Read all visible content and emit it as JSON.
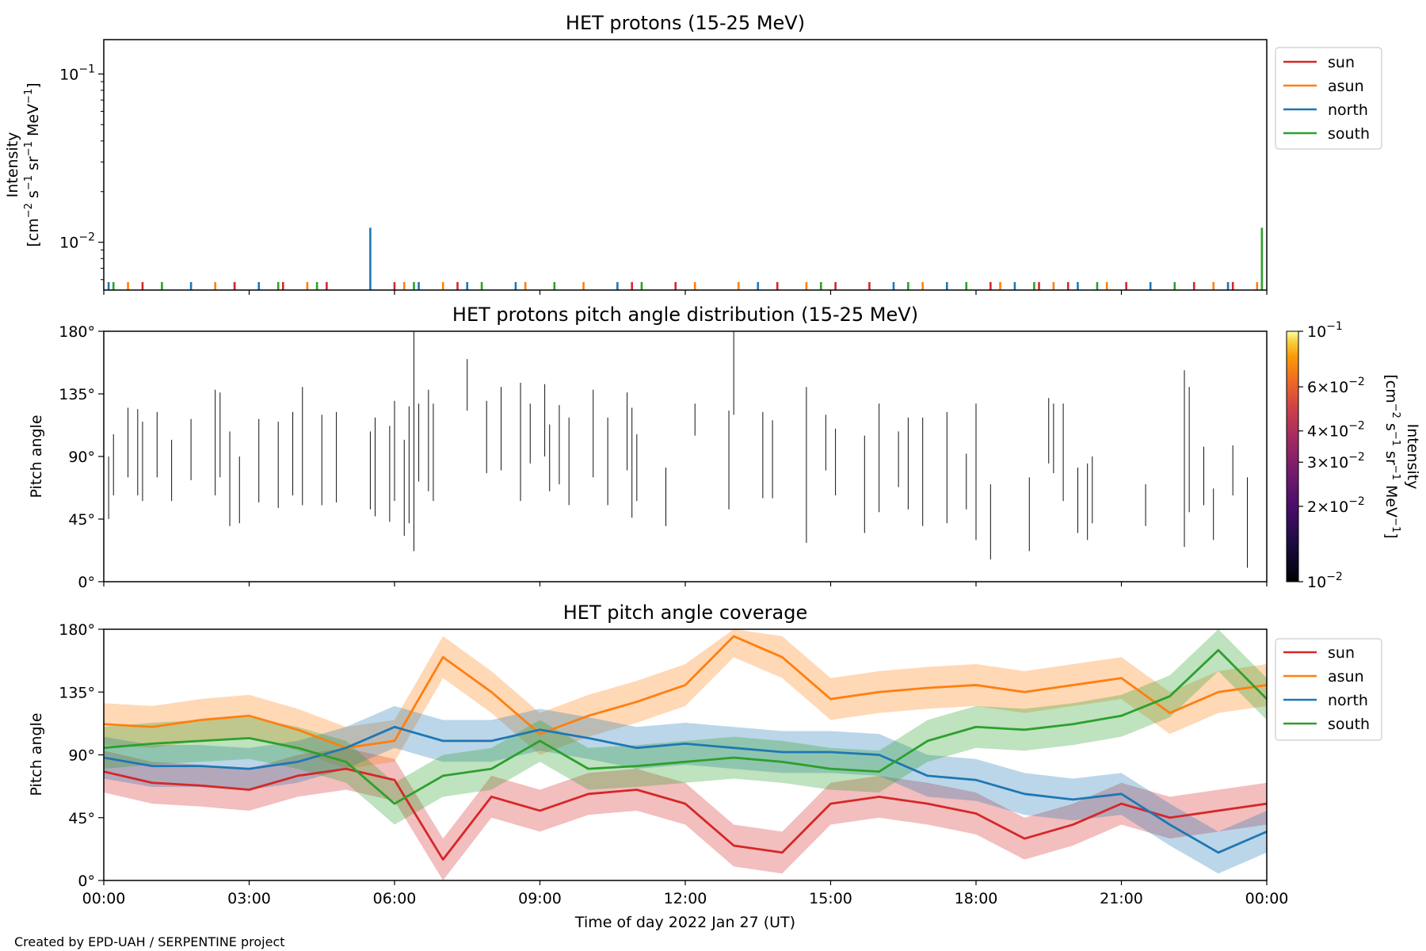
{
  "figure": {
    "credit": "Created by EPD-UAH / SERPENTINE project"
  },
  "colors": {
    "sun": "#d62728",
    "asun": "#ff7f0e",
    "north": "#1f77b4",
    "south": "#2ca02c"
  },
  "chart_data": [
    {
      "type": "line",
      "title": "HET protons (15-25 MeV)",
      "ylabel": "Intensity",
      "ylabel_units": "[cm$^{-2}$ s$^{-1}$ sr$^{-1}$ MeV$^{-1}$]",
      "yscale": "log",
      "ylim": [
        0.0052,
        0.16
      ],
      "yticks": [
        {
          "value": 0.01,
          "label": "10−2"
        },
        {
          "value": 0.1,
          "label": "10−1"
        }
      ],
      "legend": [
        "sun",
        "asun",
        "north",
        "south"
      ],
      "legend_position": "outside-right",
      "x_hours": [
        0,
        3,
        6,
        9,
        12,
        15,
        18,
        21,
        24
      ],
      "series": [
        {
          "name": "north",
          "x": [
            0.1,
            1.8,
            2.7,
            3.2,
            5.5,
            6.5,
            7.5,
            8.5,
            10.6,
            13.5,
            16.3,
            17.4,
            18.8,
            20.1,
            21.6,
            23.2
          ],
          "values": [
            0.0058,
            0.0058,
            0.0058,
            0.0058,
            0.0122,
            0.0058,
            0.0058,
            0.0058,
            0.0058,
            0.0058,
            0.0058,
            0.0058,
            0.0058,
            0.0058,
            0.0058,
            0.0058
          ]
        },
        {
          "name": "sun",
          "x": [
            0.8,
            2.7,
            3.7,
            4.6,
            6.0,
            7.3,
            10.9,
            11.8,
            13.9,
            15.1,
            15.8,
            18.3,
            19.3,
            19.9,
            21.1,
            22.5,
            23.3
          ],
          "values": [
            0.0058,
            0.0058,
            0.0058,
            0.0058,
            0.0058,
            0.0058,
            0.0058,
            0.0058,
            0.0058,
            0.0058,
            0.0058,
            0.0058,
            0.0058,
            0.0058,
            0.0058,
            0.0058,
            0.0058
          ]
        },
        {
          "name": "asun",
          "x": [
            0.5,
            2.3,
            4.2,
            6.2,
            7.0,
            8.7,
            9.9,
            12.2,
            13.1,
            14.5,
            16.9,
            18.5,
            19.6,
            20.7,
            22.9,
            23.8
          ],
          "values": [
            0.0058,
            0.0058,
            0.0058,
            0.0058,
            0.0058,
            0.0058,
            0.0058,
            0.0058,
            0.0058,
            0.0058,
            0.0058,
            0.0058,
            0.0058,
            0.0058,
            0.0058,
            0.0058
          ]
        },
        {
          "name": "south",
          "x": [
            0.2,
            1.2,
            3.6,
            4.4,
            6.4,
            7.8,
            9.3,
            11.1,
            14.8,
            16.6,
            17.8,
            19.2,
            20.5,
            22.1,
            23.9
          ],
          "values": [
            0.0058,
            0.0058,
            0.0058,
            0.0058,
            0.0058,
            0.0058,
            0.0058,
            0.0058,
            0.0058,
            0.0058,
            0.0058,
            0.0058,
            0.0058,
            0.0058,
            0.0122
          ]
        }
      ]
    },
    {
      "type": "heatmap",
      "title": "HET protons pitch angle distribution (15-25 MeV)",
      "ylabel": "Pitch angle",
      "ylim": [
        0,
        180
      ],
      "yticks": [
        "0°",
        "45°",
        "90°",
        "135°",
        "180°"
      ],
      "colorbar": {
        "label": "Intensity",
        "units": "[cm$^{-2}$ s$^{-1}$ sr$^{-1}$ MeV$^{-1}$]",
        "scale": "log",
        "range": [
          0.01,
          0.1
        ],
        "cmap": "inferno",
        "ticks": [
          {
            "value": 0.1,
            "label": "10−1"
          },
          {
            "value": 0.06,
            "label": "6×10−2"
          },
          {
            "value": 0.04,
            "label": "4×10−2"
          },
          {
            "value": 0.03,
            "label": "3×10−2"
          },
          {
            "value": 0.02,
            "label": "2×10−2"
          },
          {
            "value": 0.01,
            "label": "10−2"
          }
        ]
      },
      "segments": [
        [
          0.1,
          45,
          90
        ],
        [
          0.2,
          62,
          106
        ],
        [
          0.5,
          75,
          125
        ],
        [
          0.7,
          62,
          124
        ],
        [
          0.8,
          58,
          115
        ],
        [
          1.1,
          75,
          122
        ],
        [
          1.4,
          58,
          102
        ],
        [
          1.8,
          73,
          117
        ],
        [
          2.3,
          62,
          138
        ],
        [
          2.4,
          75,
          136
        ],
        [
          2.6,
          40,
          108
        ],
        [
          2.8,
          42,
          90
        ],
        [
          3.2,
          57,
          117
        ],
        [
          3.6,
          53,
          115
        ],
        [
          3.9,
          62,
          122
        ],
        [
          4.1,
          55,
          140
        ],
        [
          4.5,
          55,
          120
        ],
        [
          4.8,
          57,
          122
        ],
        [
          5.5,
          52,
          108
        ],
        [
          5.6,
          47,
          118
        ],
        [
          5.9,
          43,
          112
        ],
        [
          6.0,
          58,
          130
        ],
        [
          6.2,
          33,
          102
        ],
        [
          6.3,
          42,
          126
        ],
        [
          6.4,
          22,
          185
        ],
        [
          6.5,
          72,
          128
        ],
        [
          6.7,
          65,
          138
        ],
        [
          6.8,
          58,
          128
        ],
        [
          7.5,
          123,
          160
        ],
        [
          7.9,
          78,
          130
        ],
        [
          8.2,
          80,
          140
        ],
        [
          8.6,
          58,
          143
        ],
        [
          8.8,
          85,
          128
        ],
        [
          9.1,
          90,
          142
        ],
        [
          9.2,
          65,
          113
        ],
        [
          9.4,
          70,
          127
        ],
        [
          9.6,
          55,
          118
        ],
        [
          10.1,
          75,
          138
        ],
        [
          10.4,
          55,
          118
        ],
        [
          10.8,
          80,
          136
        ],
        [
          10.9,
          46,
          125
        ],
        [
          11.0,
          58,
          106
        ],
        [
          11.6,
          40,
          82
        ],
        [
          12.2,
          105,
          128
        ],
        [
          12.9,
          52,
          123
        ],
        [
          13.0,
          120,
          180
        ],
        [
          13.6,
          60,
          122
        ],
        [
          13.8,
          60,
          116
        ],
        [
          14.5,
          28,
          140
        ],
        [
          14.9,
          80,
          120
        ],
        [
          15.1,
          62,
          110
        ],
        [
          15.7,
          35,
          105
        ],
        [
          16.0,
          50,
          128
        ],
        [
          16.4,
          68,
          108
        ],
        [
          16.6,
          52,
          118
        ],
        [
          16.9,
          40,
          118
        ],
        [
          17.4,
          42,
          122
        ],
        [
          17.8,
          52,
          92
        ],
        [
          18.0,
          30,
          128
        ],
        [
          18.3,
          16,
          70
        ],
        [
          19.1,
          22,
          75
        ],
        [
          19.5,
          85,
          132
        ],
        [
          19.6,
          78,
          128
        ],
        [
          19.8,
          58,
          128
        ],
        [
          20.1,
          35,
          82
        ],
        [
          20.3,
          30,
          85
        ],
        [
          20.4,
          42,
          90
        ],
        [
          21.5,
          40,
          70
        ],
        [
          22.3,
          25,
          152
        ],
        [
          22.4,
          50,
          140
        ],
        [
          22.7,
          55,
          97
        ],
        [
          22.9,
          30,
          67
        ],
        [
          23.3,
          62,
          98
        ],
        [
          23.6,
          10,
          75
        ],
        [
          24.0,
          40,
          95
        ]
      ]
    },
    {
      "type": "area",
      "title": "HET pitch angle coverage",
      "ylabel": "Pitch angle",
      "xlabel": "Time of day 2022 Jan 27 (UT)",
      "ylim": [
        0,
        180
      ],
      "yticks": [
        "0°",
        "45°",
        "90°",
        "135°",
        "180°"
      ],
      "xticks": [
        "00:00",
        "03:00",
        "06:00",
        "09:00",
        "12:00",
        "15:00",
        "18:00",
        "21:00",
        "00:00"
      ],
      "legend": [
        "sun",
        "asun",
        "north",
        "south"
      ],
      "legend_position": "outside-right",
      "x_hours": [
        0,
        1,
        2,
        3,
        4,
        5,
        6,
        7,
        8,
        9,
        10,
        11,
        12,
        13,
        14,
        15,
        16,
        17,
        18,
        19,
        20,
        21,
        22,
        23,
        24
      ],
      "series": [
        {
          "name": "sun",
          "values": [
            78,
            70,
            68,
            65,
            75,
            80,
            72,
            15,
            60,
            50,
            62,
            65,
            55,
            25,
            20,
            55,
            60,
            55,
            48,
            30,
            40,
            55,
            45,
            50,
            55
          ],
          "band_halfwidth": 15
        },
        {
          "name": "asun",
          "values": [
            112,
            110,
            115,
            118,
            108,
            95,
            100,
            160,
            135,
            105,
            118,
            128,
            140,
            175,
            160,
            130,
            135,
            138,
            140,
            135,
            140,
            145,
            120,
            135,
            140
          ],
          "band_halfwidth": 15
        },
        {
          "name": "north",
          "values": [
            88,
            82,
            82,
            80,
            85,
            95,
            110,
            100,
            100,
            108,
            102,
            95,
            98,
            95,
            92,
            92,
            90,
            75,
            72,
            62,
            58,
            62,
            40,
            20,
            35
          ],
          "band_halfwidth": 15
        },
        {
          "name": "south",
          "values": [
            95,
            98,
            100,
            102,
            95,
            85,
            55,
            75,
            80,
            100,
            80,
            82,
            85,
            88,
            85,
            80,
            78,
            100,
            110,
            108,
            112,
            118,
            132,
            165,
            130
          ],
          "band_halfwidth": 15
        }
      ]
    }
  ]
}
